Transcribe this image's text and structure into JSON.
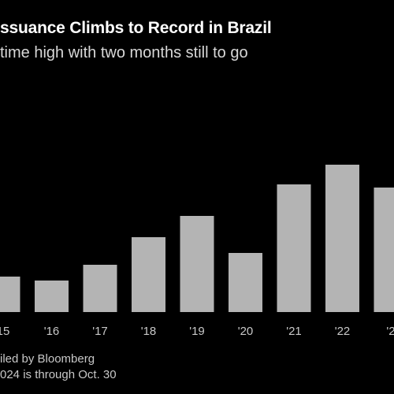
{
  "chart_data": {
    "type": "bar",
    "title": "ssuance Climbs to Record in Brazil",
    "subtitle": "time high with two months still to go",
    "categories": [
      "15",
      "'16",
      "'17",
      "'18",
      "'19",
      "'20",
      "'21",
      "'22",
      "'2"
    ],
    "values": [
      45,
      40,
      60,
      95,
      122,
      75,
      162,
      187,
      158
    ],
    "ylim": [
      0,
      200
    ],
    "grid": false,
    "xlabel": "",
    "ylabel": "",
    "bar_color": "#b4b4b4",
    "tick_color": "#c8c8c8"
  },
  "footer": {
    "source": "iled by Bloomberg",
    "note": "024 is through Oct. 30"
  }
}
